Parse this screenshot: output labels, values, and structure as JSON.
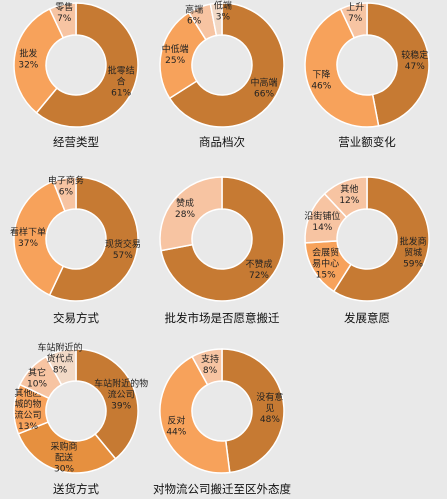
{
  "chart_data": [
    {
      "type": "pie",
      "title": "经营类型",
      "slices": [
        {
          "label": [
            "批零结",
            "合"
          ],
          "value": 61,
          "pct": "61%",
          "color": "#c67a33",
          "pos": "in"
        },
        {
          "label": [
            "批发"
          ],
          "value": 32,
          "pct": "32%",
          "color": "#f7a25b",
          "pos": "in"
        },
        {
          "label": [
            "零售"
          ],
          "value": 7,
          "pct": "7%",
          "color": "#f7c4a2",
          "pos": "out"
        }
      ]
    },
    {
      "type": "pie",
      "title": "商品档次",
      "slices": [
        {
          "label": [
            "中高端"
          ],
          "value": 66,
          "pct": "66%",
          "color": "#c67a33",
          "pos": "in"
        },
        {
          "label": [
            "中低端"
          ],
          "value": 25,
          "pct": "25%",
          "color": "#f7a25b",
          "pos": "in"
        },
        {
          "label": [
            "高端"
          ],
          "value": 6,
          "pct": "6%",
          "color": "#f7c4a2",
          "pos": "out"
        },
        {
          "label": [
            "低端"
          ],
          "value": 3,
          "pct": "3%",
          "color": "#f2d9c6",
          "pos": "out"
        }
      ]
    },
    {
      "type": "pie",
      "title": "营业额变化",
      "slices": [
        {
          "label": [
            "较稳定"
          ],
          "value": 47,
          "pct": "47%",
          "color": "#c67a33",
          "pos": "in"
        },
        {
          "label": [
            "下降"
          ],
          "value": 46,
          "pct": "46%",
          "color": "#f7a25b",
          "pos": "in"
        },
        {
          "label": [
            "上升"
          ],
          "value": 7,
          "pct": "7%",
          "color": "#f7c4a2",
          "pos": "out"
        }
      ]
    },
    {
      "type": "pie",
      "title": "交易方式",
      "slices": [
        {
          "label": [
            "现货交易"
          ],
          "value": 57,
          "pct": "57%",
          "color": "#c67a33",
          "pos": "in"
        },
        {
          "label": [
            "看样下单"
          ],
          "value": 37,
          "pct": "37%",
          "color": "#f7a25b",
          "pos": "in"
        },
        {
          "label": [
            "电子商务"
          ],
          "value": 6,
          "pct": "6%",
          "color": "#f7c4a2",
          "pos": "out"
        }
      ]
    },
    {
      "type": "pie",
      "title": "批发市场是否愿意搬迁",
      "slices": [
        {
          "label": [
            "不赞成"
          ],
          "value": 72,
          "pct": "72%",
          "color": "#c67a33",
          "pos": "in"
        },
        {
          "label": [
            "赞成"
          ],
          "value": 28,
          "pct": "28%",
          "color": "#f7c4a2",
          "pos": "in"
        }
      ]
    },
    {
      "type": "pie",
      "title": "发展意愿",
      "slices": [
        {
          "label": [
            "批发商",
            "贸城"
          ],
          "value": 59,
          "pct": "59%",
          "color": "#c67a33",
          "pos": "in"
        },
        {
          "label": [
            "会展贸",
            "易中心"
          ],
          "value": 15,
          "pct": "15%",
          "color": "#f7a25b",
          "pos": "in"
        },
        {
          "label": [
            "沿街铺位"
          ],
          "value": 14,
          "pct": "14%",
          "color": "#f7c4a2",
          "pos": "in"
        },
        {
          "label": [
            "其他"
          ],
          "value": 12,
          "pct": "12%",
          "color": "#f7c4a2",
          "pos": "in"
        }
      ]
    },
    {
      "type": "pie",
      "title": "送货方式",
      "slices": [
        {
          "label": [
            "车站附近的物",
            "流公司"
          ],
          "value": 39,
          "pct": "39%",
          "color": "#c67a33",
          "pos": "in"
        },
        {
          "label": [
            "采购商",
            "配送"
          ],
          "value": 30,
          "pct": "30%",
          "color": "#e6903f",
          "pos": "in"
        },
        {
          "label": [
            "其他区",
            "城的物",
            "流公司"
          ],
          "value": 13,
          "pct": "13%",
          "color": "#f7a25b",
          "pos": "in"
        },
        {
          "label": [
            "其它"
          ],
          "value": 10,
          "pct": "10%",
          "color": "#f7c4a2",
          "pos": "in"
        },
        {
          "label": [
            "车站附近的",
            "货代点"
          ],
          "value": 8,
          "pct": "8%",
          "color": "#f2d9c6",
          "pos": "in"
        }
      ]
    },
    {
      "type": "pie",
      "title": "对物流公司搬迁至区外态度",
      "slices": [
        {
          "label": [
            "没有意",
            "见"
          ],
          "value": 48,
          "pct": "48%",
          "color": "#c67a33",
          "pos": "in"
        },
        {
          "label": [
            "反对"
          ],
          "value": 44,
          "pct": "44%",
          "color": "#f7a25b",
          "pos": "in"
        },
        {
          "label": [
            "支持"
          ],
          "value": 8,
          "pct": "8%",
          "color": "#f7c4a2",
          "pos": "in"
        }
      ]
    }
  ]
}
